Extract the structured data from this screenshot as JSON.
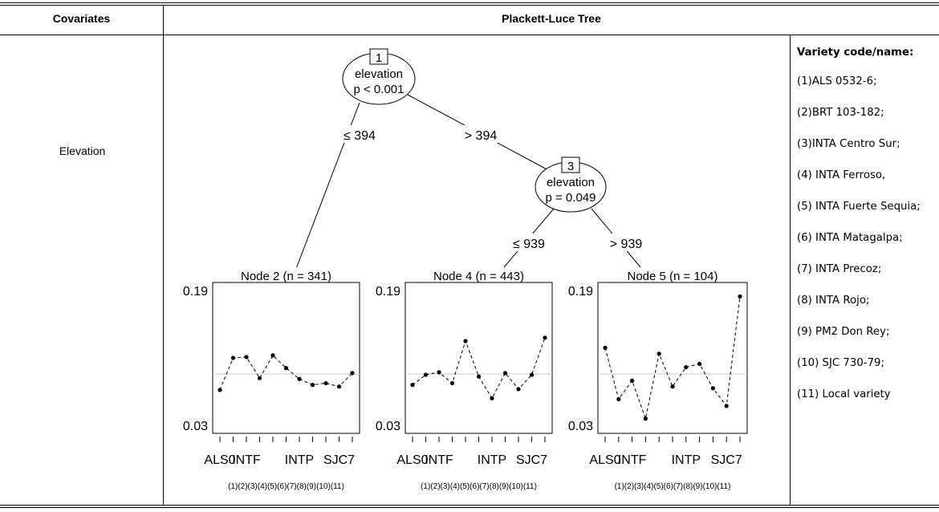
{
  "table": {
    "header_covariates": "Covariates",
    "header_tree": "Plackett-Luce Tree",
    "covariate": "Elevation"
  },
  "tree": {
    "nodes": [
      {
        "id": "1",
        "variable": "elevation",
        "p_text": "p < 0.001"
      },
      {
        "id": "3",
        "variable": "elevation",
        "p_text": "p = 0.049"
      }
    ],
    "edges": [
      {
        "from": "1",
        "to": "2",
        "label": "≤ 394"
      },
      {
        "from": "1",
        "to": "3",
        "label": "> 394"
      },
      {
        "from": "3",
        "to": "4",
        "label": "≤ 939"
      },
      {
        "from": "3",
        "to": "5",
        "label": "> 939"
      }
    ]
  },
  "chart_data": {
    "type": "line",
    "y_range": [
      0.03,
      0.19
    ],
    "y_tick_labels": [
      "0.19",
      "0.03"
    ],
    "reference_line": 0.091,
    "x_tick_labels": [
      "ALS0",
      "INTF",
      "INTP",
      "SJC7"
    ],
    "x_codes_label": "(1)(2)(3)(4)(5)(6)(7)(8)(9)(10)(11)",
    "panels": [
      {
        "title": "Node 2 (n = 341)",
        "values": [
          0.072,
          0.11,
          0.111,
          0.086,
          0.113,
          0.098,
          0.085,
          0.078,
          0.08,
          0.076,
          0.092
        ]
      },
      {
        "title": "Node 4 (n = 443)",
        "values": [
          0.078,
          0.09,
          0.093,
          0.08,
          0.13,
          0.088,
          0.062,
          0.092,
          0.073,
          0.09,
          0.134
        ]
      },
      {
        "title": "Node 5 (n = 104)",
        "values": [
          0.122,
          0.061,
          0.083,
          0.038,
          0.115,
          0.076,
          0.099,
          0.103,
          0.074,
          0.053,
          0.183
        ]
      }
    ]
  },
  "legend": {
    "title": "Variety code/name:",
    "items": [
      "(1)ALS 0532-6;",
      "(2)BRT 103-182;",
      "(3)INTA Centro Sur;",
      "(4) INTA Ferroso,",
      "(5) INTA Fuerte Sequia;",
      "(6) INTA Matagalpa;",
      "(7) INTA Precoz;",
      "(8) INTA Rojo;",
      "(9) PM2 Don Rey;",
      "(10) SJC 730-79;",
      "(11) Local variety"
    ]
  }
}
